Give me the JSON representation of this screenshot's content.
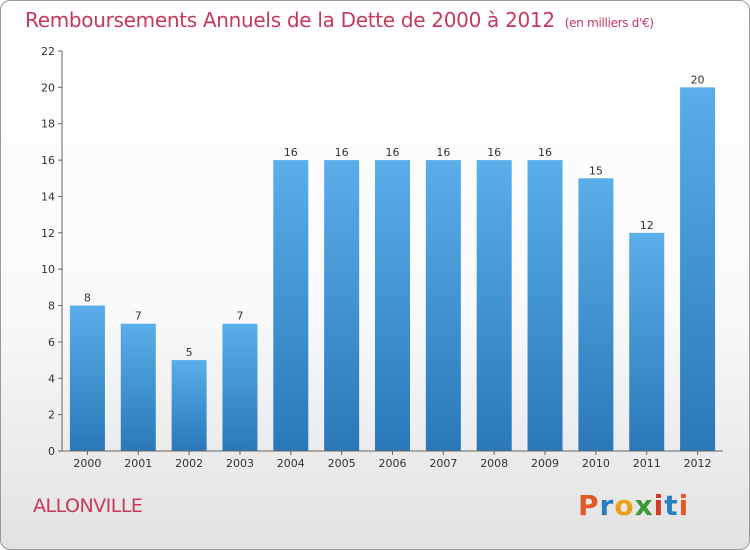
{
  "header": {
    "title": "Remboursements Annuels de la Dette de 2000 à 2012",
    "subtitle": "(en milliers d'€)"
  },
  "footer": {
    "city": "ALLONVILLE",
    "logo_text": "Proxiti"
  },
  "colors": {
    "title": "#c4395c",
    "bar_light": "#5aaeea",
    "bar_dark": "#2a78b8",
    "logo_letters": [
      "#e05a28",
      "#2a7fc0",
      "#e8a21a",
      "#3a9a3a",
      "#d23a2a",
      "#2a7fc0",
      "#e05a28"
    ]
  },
  "chart_data": {
    "type": "bar",
    "categories": [
      "2000",
      "2001",
      "2002",
      "2003",
      "2004",
      "2005",
      "2006",
      "2007",
      "2008",
      "2009",
      "2010",
      "2011",
      "2012"
    ],
    "values": [
      8,
      7,
      5,
      7,
      16,
      16,
      16,
      16,
      16,
      16,
      15,
      12,
      20
    ],
    "ylim": [
      0,
      22
    ],
    "yticks": [
      0,
      2,
      4,
      6,
      8,
      10,
      12,
      14,
      16,
      18,
      20,
      22
    ],
    "grid": false,
    "legend": "none"
  }
}
